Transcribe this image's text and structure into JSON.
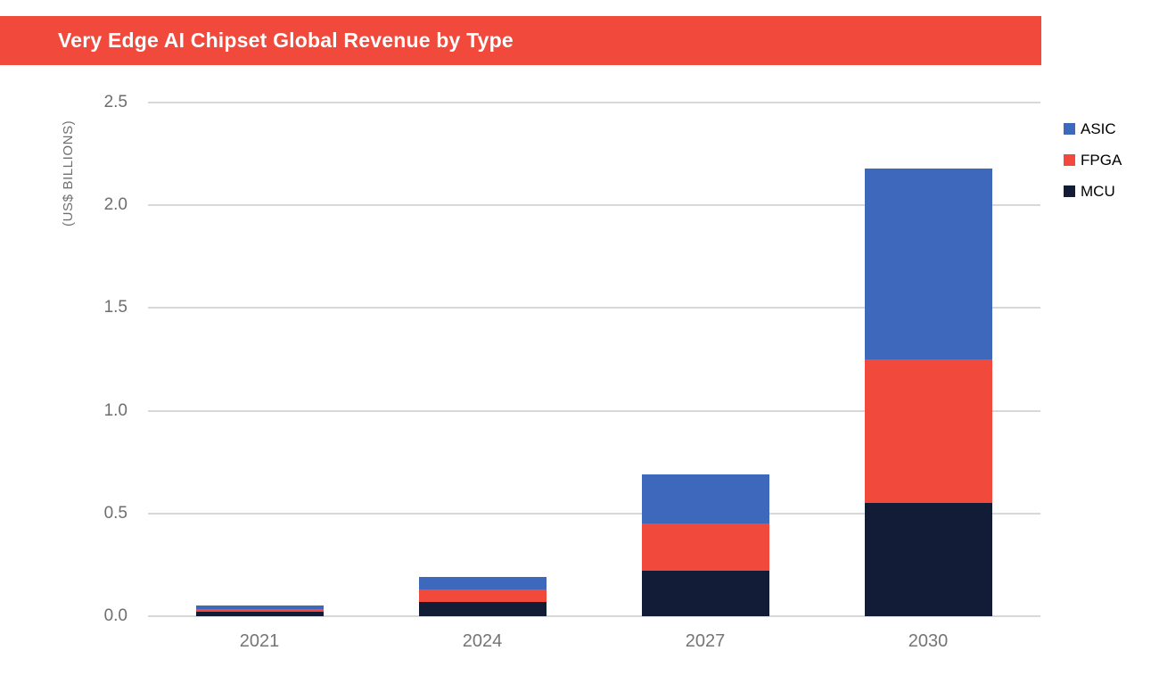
{
  "header": {
    "title": "Very Edge AI Chipset Global Revenue by Type",
    "background_color": "#F1493B",
    "text_color": "#FFFFFF"
  },
  "chart_data": {
    "type": "bar",
    "stacked": true,
    "title": "Very Edge AI Chipset Global Revenue by Type",
    "ylabel": "(US$ BILLIONS)",
    "xlabel": "",
    "categories": [
      "2021",
      "2024",
      "2027",
      "2030"
    ],
    "series": [
      {
        "name": "MCU",
        "color": "#121C36",
        "values": [
          0.02,
          0.07,
          0.22,
          0.55
        ]
      },
      {
        "name": "FPGA",
        "color": "#F1493B",
        "values": [
          0.015,
          0.06,
          0.23,
          0.7
        ]
      },
      {
        "name": "ASIC",
        "color": "#3E68BB",
        "values": [
          0.015,
          0.06,
          0.24,
          0.93
        ]
      }
    ],
    "stack_order_bottom_to_top": [
      "MCU",
      "FPGA",
      "ASIC"
    ],
    "legend_order_top_to_bottom": [
      "ASIC",
      "FPGA",
      "MCU"
    ],
    "ylim": [
      0,
      2.5
    ],
    "ytick_labels": [
      "0.0",
      "0.5",
      "1.0",
      "1.5",
      "2.0",
      "2.5"
    ],
    "ytick_values": [
      0,
      0.5,
      1.0,
      1.5,
      2.0,
      2.5
    ],
    "grid": true,
    "legend_position": "top-right"
  },
  "colors": {
    "gridline": "#D8D8D8",
    "y_tick_text": "#6E6E6E",
    "x_tick_text": "#757575",
    "legend_text": "#000000",
    "background": "#FFFFFF"
  }
}
